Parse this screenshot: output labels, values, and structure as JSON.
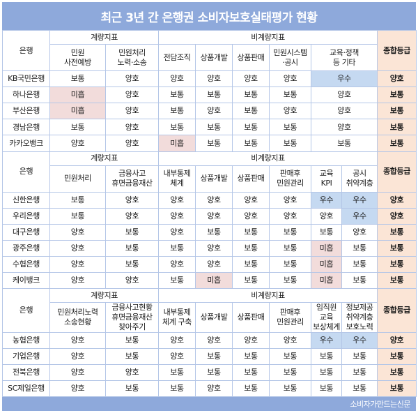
{
  "title": "최근 3년 간 은행권 소비자보호실태평가 현황",
  "footer": "소비자가만드는신문",
  "labels": {
    "bank": "은행",
    "quant": "계량지표",
    "nonquant": "비계량지표",
    "overall": "종합등급"
  },
  "colors": {
    "title_bg": "#8ea9db",
    "grade_bg": "#fbe5d6",
    "good_bg": "#c5d9f1",
    "bad_bg": "#f2dcdb",
    "border": "#b4c6e7"
  },
  "sections": [
    {
      "quant_cols": [
        "민원\n사전예방",
        "민원처리\n노력·소송"
      ],
      "nonquant_cols": [
        "전담조직",
        "상품개발",
        "상품판매",
        "민원시스템\n·공시",
        "교육·정책\n등 기타"
      ],
      "rows": [
        {
          "bank": "KB국민은행",
          "cells": [
            "보통",
            "양호",
            "양호",
            "양호",
            "양호",
            "양호",
            "우수"
          ],
          "overall": "양호"
        },
        {
          "bank": "하나은행",
          "cells": [
            "미흡",
            "양호",
            "보통",
            "보통",
            "보통",
            "보통",
            "양호"
          ],
          "overall": "보통"
        },
        {
          "bank": "부산은행",
          "cells": [
            "미흡",
            "양호",
            "보통",
            "양호",
            "보통",
            "양호",
            "양호"
          ],
          "overall": "보통"
        },
        {
          "bank": "경남은행",
          "cells": [
            "보통",
            "양호",
            "보통",
            "보통",
            "보통",
            "보통",
            "양호"
          ],
          "overall": "보통"
        },
        {
          "bank": "카카오뱅크",
          "cells": [
            "양호",
            "양호",
            "미흡",
            "보통",
            "보통",
            "보통",
            "보통"
          ],
          "overall": "보통"
        }
      ]
    },
    {
      "quant_cols": [
        "민원처리",
        "금융사고\n휴면금융재산"
      ],
      "nonquant_cols": [
        "내부통제\n체계",
        "상품개발",
        "상품판매",
        "판매후\n민원관리",
        "교육\nKPI",
        "공시\n취약계층"
      ],
      "rows": [
        {
          "bank": "신한은행",
          "cells": [
            "보통",
            "양호",
            "양호",
            "양호",
            "양호",
            "양호",
            "우수",
            "우수"
          ],
          "overall": "양호"
        },
        {
          "bank": "우리은행",
          "cells": [
            "보통",
            "양호",
            "양호",
            "양호",
            "양호",
            "양호",
            "양호",
            "우수"
          ],
          "overall": "양호"
        },
        {
          "bank": "대구은행",
          "cells": [
            "양호",
            "보통",
            "양호",
            "보통",
            "보통",
            "보통",
            "보통",
            "양호"
          ],
          "overall": "보통"
        },
        {
          "bank": "광주은행",
          "cells": [
            "양호",
            "보통",
            "보통",
            "양호",
            "보통",
            "보통",
            "미흡",
            "보통"
          ],
          "overall": "보통"
        },
        {
          "bank": "수협은행",
          "cells": [
            "양호",
            "보통",
            "양호",
            "양호",
            "보통",
            "보통",
            "미흡",
            "보통"
          ],
          "overall": "보통"
        },
        {
          "bank": "케이뱅크",
          "cells": [
            "양호",
            "양호",
            "보통",
            "미흡",
            "보통",
            "보통",
            "미흡",
            "보통"
          ],
          "overall": "보통"
        }
      ]
    },
    {
      "quant_cols": [
        "민원처리노력\n소송현황",
        "금융사고현황\n휴면금융재산\n찾아주기"
      ],
      "nonquant_cols": [
        "내부통제\n체계 구축",
        "상품개발",
        "상품판매",
        "판매후\n민원관리",
        "임직원\n교육\n보상체계",
        "정보제공\n취약계층\n보호노력"
      ],
      "rows": [
        {
          "bank": "농협은행",
          "cells": [
            "양호",
            "보통",
            "양호",
            "양호",
            "양호",
            "양호",
            "우수",
            "우수"
          ],
          "overall": "양호"
        },
        {
          "bank": "기업은행",
          "cells": [
            "양호",
            "보통",
            "양호",
            "보통",
            "보통",
            "보통",
            "보통",
            "보통"
          ],
          "overall": "보통"
        },
        {
          "bank": "전북은행",
          "cells": [
            "양호",
            "양호",
            "보통",
            "보통",
            "보통",
            "보통",
            "보통",
            "보통"
          ],
          "overall": "보통"
        },
        {
          "bank": "SC제일은행",
          "cells": [
            "양호",
            "보통",
            "보통",
            "양호",
            "보통",
            "보통",
            "보통",
            "보통"
          ],
          "overall": "보통"
        }
      ]
    }
  ]
}
